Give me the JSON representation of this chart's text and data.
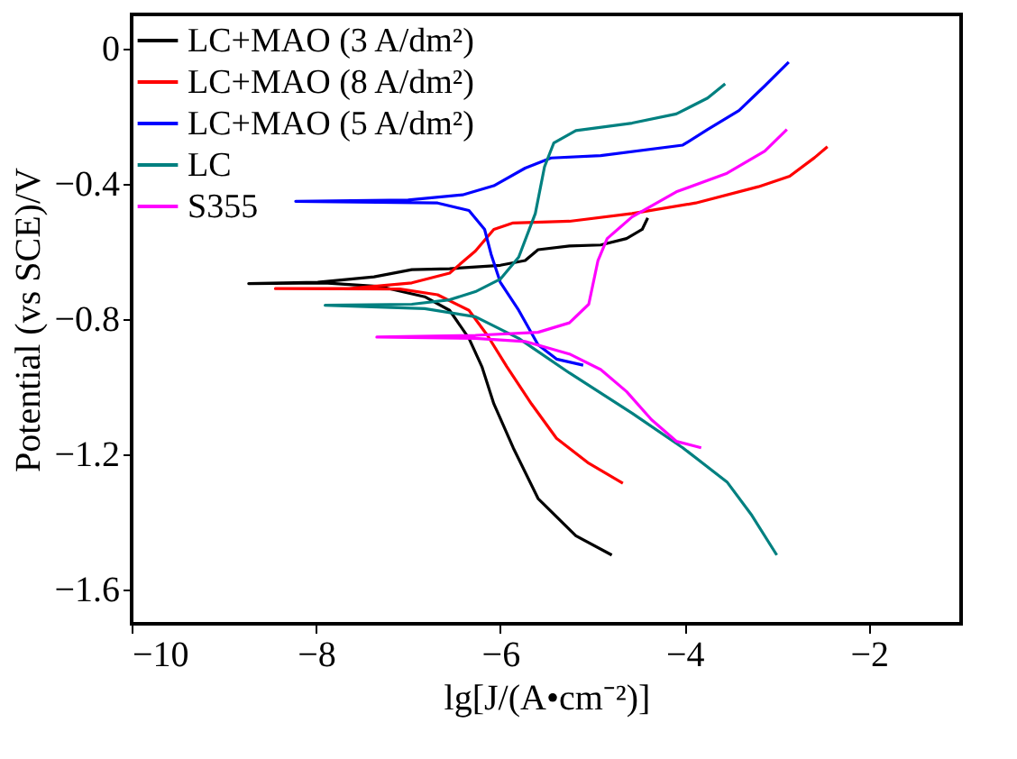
{
  "chart_data": {
    "type": "line",
    "xlabel": "lg[J/(A•cm⁻²)]",
    "ylabel": "Potential (vs SCE)/V",
    "xlim": [
      -10,
      -1
    ],
    "ylim": [
      -1.7,
      0.1
    ],
    "xticks": [
      -10,
      -8,
      -6,
      -4,
      -2
    ],
    "yticks": [
      0,
      -0.4,
      -0.8,
      -1.2,
      -1.6
    ],
    "grid": false,
    "legend": "top left",
    "marker": "none",
    "line_style": "solid",
    "series": [
      {
        "name": "LC+MAO (3 A/dm²)",
        "color": "#000000",
        "x": [
          -4.79,
          -5.18,
          -5.59,
          -5.86,
          -6.07,
          -6.2,
          -6.34,
          -6.55,
          -6.82,
          -7.3,
          -7.91,
          -8.73,
          -7.98,
          -7.37,
          -6.96,
          -6.55,
          -6.0,
          -5.73,
          -5.59,
          -5.25,
          -4.91,
          -4.63,
          -4.46,
          -4.4
        ],
        "values": [
          -1.497,
          -1.44,
          -1.33,
          -1.18,
          -1.05,
          -0.94,
          -0.857,
          -0.774,
          -0.734,
          -0.704,
          -0.693,
          -0.695,
          -0.691,
          -0.675,
          -0.654,
          -0.651,
          -0.641,
          -0.627,
          -0.595,
          -0.584,
          -0.581,
          -0.562,
          -0.535,
          -0.501
        ]
      },
      {
        "name": "LC+MAO (8 A/dm²)",
        "color": "#ff0000",
        "x": [
          -4.67,
          -5.04,
          -5.39,
          -5.66,
          -5.93,
          -6.14,
          -6.34,
          -6.68,
          -7.09,
          -8.44,
          -7.64,
          -6.96,
          -6.55,
          -6.27,
          -6.07,
          -5.86,
          -5.25,
          -4.57,
          -3.88,
          -3.2,
          -2.86,
          -2.59,
          -2.45
        ],
        "values": [
          -1.285,
          -1.226,
          -1.152,
          -1.051,
          -0.94,
          -0.848,
          -0.774,
          -0.728,
          -0.711,
          -0.71,
          -0.71,
          -0.693,
          -0.664,
          -0.599,
          -0.535,
          -0.516,
          -0.511,
          -0.488,
          -0.457,
          -0.409,
          -0.378,
          -0.323,
          -0.291
        ]
      },
      {
        "name": "LC+MAO (5 A/dm²)",
        "color": "#0000ff",
        "x": [
          -5.1,
          -5.39,
          -5.59,
          -5.8,
          -6.0,
          -6.1,
          -6.17,
          -6.34,
          -6.68,
          -8.22,
          -7.0,
          -6.41,
          -6.07,
          -5.73,
          -5.45,
          -4.91,
          -4.02,
          -3.75,
          -3.41,
          -3.13,
          -2.87
        ],
        "values": [
          -0.936,
          -0.918,
          -0.876,
          -0.774,
          -0.691,
          -0.608,
          -0.535,
          -0.479,
          -0.457,
          -0.452,
          -0.448,
          -0.433,
          -0.406,
          -0.354,
          -0.324,
          -0.317,
          -0.286,
          -0.24,
          -0.184,
          -0.111,
          -0.041
        ]
      },
      {
        "name": "LC",
        "color": "#008080",
        "x": [
          -3.0,
          -3.27,
          -3.54,
          -4.02,
          -4.57,
          -5.25,
          -5.8,
          -6.27,
          -6.82,
          -7.9,
          -6.96,
          -6.55,
          -6.27,
          -6.0,
          -5.8,
          -5.62,
          -5.52,
          -5.42,
          -5.18,
          -4.57,
          -4.09,
          -3.75,
          -3.56
        ],
        "values": [
          -1.497,
          -1.38,
          -1.281,
          -1.18,
          -1.078,
          -0.959,
          -0.857,
          -0.793,
          -0.769,
          -0.759,
          -0.756,
          -0.743,
          -0.719,
          -0.682,
          -0.617,
          -0.488,
          -0.35,
          -0.28,
          -0.243,
          -0.221,
          -0.194,
          -0.147,
          -0.105
        ]
      },
      {
        "name": "S355",
        "color": "#ff00ff",
        "x": [
          -3.82,
          -4.09,
          -4.36,
          -4.63,
          -4.91,
          -5.25,
          -5.73,
          -6.27,
          -7.34,
          -6.27,
          -5.59,
          -5.25,
          -5.04,
          -4.94,
          -4.84,
          -4.57,
          -4.09,
          -3.54,
          -3.13,
          -2.89
        ],
        "values": [
          -1.18,
          -1.161,
          -1.097,
          -1.014,
          -0.949,
          -0.903,
          -0.866,
          -0.857,
          -0.853,
          -0.848,
          -0.839,
          -0.811,
          -0.756,
          -0.627,
          -0.562,
          -0.498,
          -0.424,
          -0.369,
          -0.304,
          -0.24
        ]
      }
    ]
  }
}
